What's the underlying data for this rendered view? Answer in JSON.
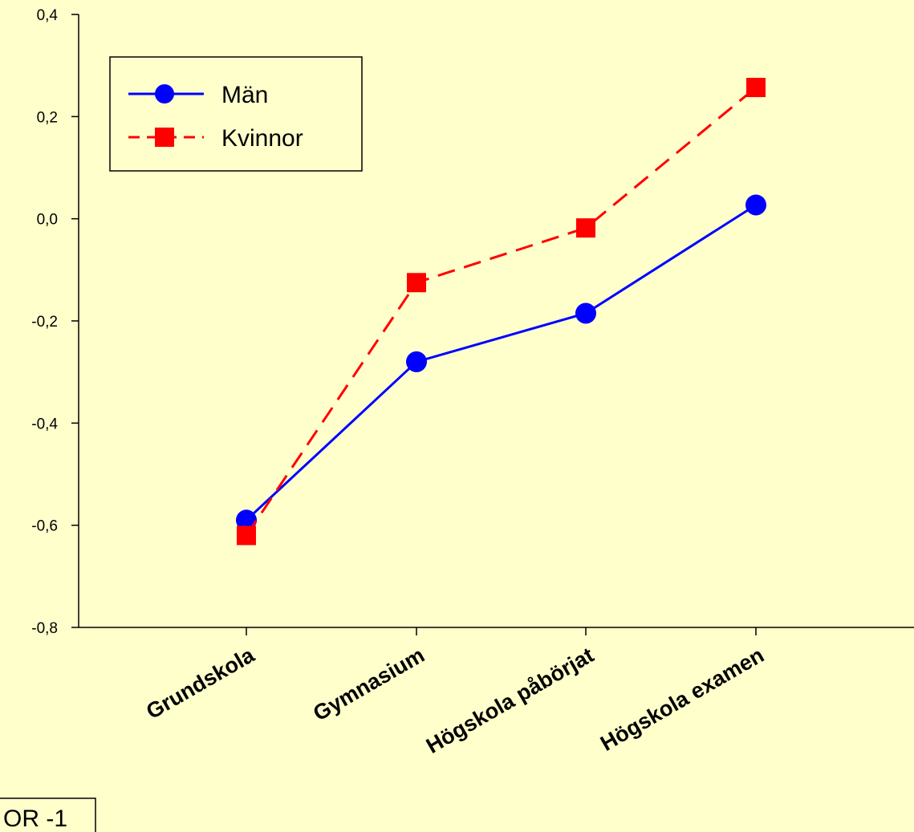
{
  "chart_data": {
    "type": "line",
    "categories": [
      "Grundskola",
      "Gymnasium",
      "Högskola påbörjat",
      "Högskola examen"
    ],
    "series": [
      {
        "name": "Män",
        "values": [
          -0.59,
          -0.28,
          -0.185,
          0.027
        ],
        "color": "#0000FF",
        "line_style": "solid",
        "marker": "circle"
      },
      {
        "name": "Kvinnor",
        "values": [
          -0.62,
          -0.125,
          -0.018,
          0.257
        ],
        "color": "#FF0000",
        "line_style": "dashed",
        "marker": "square"
      }
    ],
    "ylim": [
      -0.8,
      0.4
    ],
    "yticks": [
      "-0,8",
      "-0,6",
      "-0,4",
      "-0,2",
      "0,0",
      "0,2",
      "0,4"
    ],
    "ytick_values": [
      -0.8,
      -0.6,
      -0.4,
      -0.2,
      0.0,
      0.2,
      0.4
    ],
    "grid": false,
    "legend_position": "top-left"
  },
  "corner_tag": "OR -1",
  "colors": {
    "background": "#FFFFCC",
    "axis": "#000000"
  }
}
